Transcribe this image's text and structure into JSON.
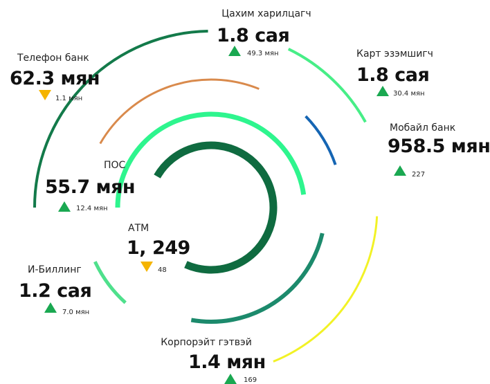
{
  "items": [
    {
      "label": "Цахим харилцагч",
      "value": "1.8 сая",
      "change": "49.3 мян",
      "trend": "up"
    },
    {
      "label": "Телефон банк",
      "value": "62.3 мян",
      "change": "1.1 мян",
      "trend": "down"
    },
    {
      "label": "Карт эзэмшигч",
      "value": "1.8 сая",
      "change": "30.4 мян",
      "trend": "up"
    },
    {
      "label": "Мобайл банк",
      "value": "958.5 мян",
      "change": "227",
      "trend": "up"
    },
    {
      "label": "ПОС",
      "value": "55.7 мян",
      "change": "12.4 мян",
      "trend": "up"
    },
    {
      "label": "АТМ",
      "value": "1, 249",
      "change": "48",
      "trend": "down"
    },
    {
      "label": "И-Биллинг",
      "value": "1.2 сая",
      "change": "7.0 мян",
      "trend": "up"
    },
    {
      "label": "Корпорэйт гэтвэй",
      "value": "1.4 мян",
      "change": "169",
      "trend": "up"
    }
  ]
}
